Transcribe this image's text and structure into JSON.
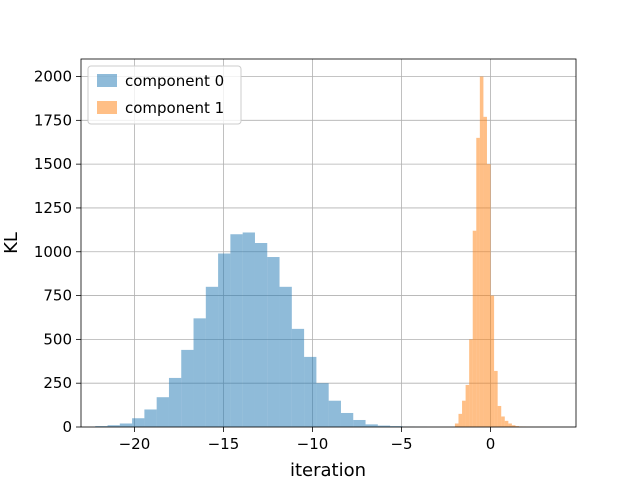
{
  "chart_data": {
    "type": "histogram",
    "xlabel": "iteration",
    "ylabel": "KL",
    "xlim": [
      -23.0,
      4.8
    ],
    "ylim": [
      0,
      2100
    ],
    "xticks": [
      -20,
      -15,
      -10,
      -5,
      0
    ],
    "xtick_labels": [
      "−20",
      "−15",
      "−10",
      "−5",
      "0"
    ],
    "yticks": [
      0,
      250,
      500,
      750,
      1000,
      1250,
      1500,
      1750,
      2000
    ],
    "ytick_labels": [
      "0",
      "250",
      "500",
      "750",
      "1000",
      "1250",
      "1500",
      "1750",
      "2000"
    ],
    "grid": true,
    "legend_position": "upper-left",
    "series": [
      {
        "name": "component 0",
        "color": "#1f77b4",
        "alpha": 0.5,
        "bin_start": -22.2,
        "bin_width": 0.69,
        "counts": [
          5,
          10,
          20,
          50,
          100,
          170,
          280,
          440,
          620,
          800,
          990,
          1100,
          1110,
          1050,
          970,
          800,
          560,
          400,
          250,
          150,
          80,
          40,
          15,
          8,
          5,
          2,
          1,
          0,
          0,
          0,
          0
        ]
      },
      {
        "name": "component 1",
        "color": "#ff7f0e",
        "alpha": 0.5,
        "bin_start": -2.0,
        "bin_width": 0.2,
        "counts": [
          20,
          75,
          150,
          240,
          500,
          1120,
          1650,
          2000,
          1770,
          1500,
          750,
          320,
          120,
          60,
          35,
          20,
          10,
          5,
          3,
          2,
          1,
          1,
          0,
          1,
          1,
          0
        ]
      }
    ]
  }
}
